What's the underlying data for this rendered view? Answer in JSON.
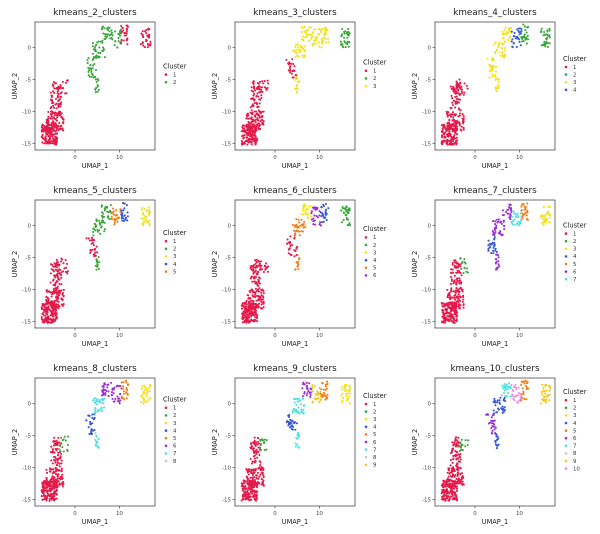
{
  "colors": {
    "1": "#e41a4a",
    "2": "#3aa63a",
    "3": "#f2e21c",
    "4": "#3456d4",
    "5": "#f07f1b",
    "6": "#9b2bd6",
    "7": "#4ee0e0",
    "8": "#c8c8c8",
    "9": "#f2c81c",
    "10": "#f08ae0"
  },
  "chart_data": [
    {
      "type": "scatter",
      "title": "kmeans_2_clusters",
      "xlabel": "UMAP_1",
      "ylabel": "UMAP_2",
      "xticks": [
        0,
        10
      ],
      "yticks": [
        0,
        -5,
        -10,
        -15
      ],
      "xlim": [
        -9,
        18
      ],
      "ylim": [
        -16,
        4
      ],
      "legend_title": "Cluster",
      "legend": [
        "1",
        "2"
      ],
      "region_clusters": {
        "main": 1,
        "stem": 1,
        "connector": 2,
        "mid": 2,
        "branch": 2,
        "top": 2,
        "upper": 1,
        "right": 1
      }
    },
    {
      "type": "scatter",
      "title": "kmeans_3_clusters",
      "xlabel": "UMAP_1",
      "ylabel": "UMAP_2",
      "xticks": [
        0,
        10
      ],
      "yticks": [
        0,
        -5,
        -10,
        -15
      ],
      "xlim": [
        -9,
        18
      ],
      "ylim": [
        -16,
        4
      ],
      "legend_title": "Cluster",
      "legend": [
        "1",
        "2",
        "3"
      ],
      "region_clusters": {
        "main": 1,
        "stem": 1,
        "connector": 1,
        "mid": 3,
        "branch": 3,
        "top": 3,
        "upper": 3,
        "right": 2
      }
    },
    {
      "type": "scatter",
      "title": "kmeans_4_clusters",
      "xlabel": "UMAP_1",
      "ylabel": "UMAP_2",
      "xticks": [
        0,
        10
      ],
      "yticks": [
        0,
        -5,
        -10,
        -15
      ],
      "xlim": [
        -9,
        18
      ],
      "ylim": [
        -16,
        4
      ],
      "legend_title": "Cluster",
      "legend": [
        "1",
        "2",
        "3",
        "4"
      ],
      "region_clusters": {
        "main": 1,
        "stem": 1,
        "connector": 3,
        "mid": 3,
        "branch": 3,
        "top": 4,
        "upper": 2,
        "right": 2
      }
    },
    {
      "type": "scatter",
      "title": "kmeans_5_clusters",
      "xlabel": "UMAP_1",
      "ylabel": "UMAP_2",
      "xticks": [
        0,
        10
      ],
      "yticks": [
        0,
        -5,
        -10,
        -15
      ],
      "xlim": [
        -9,
        18
      ],
      "ylim": [
        -16,
        4
      ],
      "legend_title": "Cluster",
      "legend": [
        "1",
        "2",
        "3",
        "4",
        "5"
      ],
      "region_clusters": {
        "main": 1,
        "stem": 1,
        "connector": 1,
        "mid": 2,
        "branch": 2,
        "top": 5,
        "upper": 4,
        "right": 3
      }
    },
    {
      "type": "scatter",
      "title": "kmeans_6_clusters",
      "xlabel": "UMAP_1",
      "ylabel": "UMAP_2",
      "xticks": [
        0,
        10
      ],
      "yticks": [
        0,
        -5,
        -10,
        -15
      ],
      "xlim": [
        -9,
        18
      ],
      "ylim": [
        -16,
        4
      ],
      "legend_title": "Cluster",
      "legend": [
        "1",
        "2",
        "3",
        "4",
        "5",
        "6"
      ],
      "region_clusters": {
        "main": 1,
        "stem": 1,
        "connector": 1,
        "mid": 5,
        "branch": 3,
        "top": 6,
        "upper": 4,
        "right": 2
      }
    },
    {
      "type": "scatter",
      "title": "kmeans_7_clusters",
      "xlabel": "UMAP_1",
      "ylabel": "UMAP_2",
      "xticks": [
        0,
        10
      ],
      "yticks": [
        0,
        -5,
        -10,
        -15
      ],
      "xlim": [
        -9,
        18
      ],
      "ylim": [
        -16,
        4
      ],
      "legend_title": "Cluster",
      "legend": [
        "1",
        "2",
        "3",
        "4",
        "5",
        "6",
        "7"
      ],
      "region_clusters": {
        "main": 1,
        "stem": 2,
        "connector": 4,
        "mid": 6,
        "branch": 6,
        "top": 7,
        "upper": 5,
        "right": 3
      }
    },
    {
      "type": "scatter",
      "title": "kmeans_8_clusters",
      "xlabel": "UMAP_1",
      "ylabel": "UMAP_2",
      "xticks": [
        0,
        10
      ],
      "yticks": [
        0,
        -5,
        -10,
        -15
      ],
      "xlim": [
        -9,
        18
      ],
      "ylim": [
        -16,
        4
      ],
      "legend_title": "Cluster",
      "legend": [
        "1",
        "2",
        "3",
        "4",
        "5",
        "6",
        "7",
        "8"
      ],
      "region_clusters": {
        "main": 1,
        "stem": 2,
        "connector": 4,
        "mid": 7,
        "branch": 6,
        "top": 6,
        "upper": 5,
        "right": 3
      }
    },
    {
      "type": "scatter",
      "title": "kmeans_9_clusters",
      "xlabel": "UMAP_1",
      "ylabel": "UMAP_2",
      "xticks": [
        0,
        10
      ],
      "yticks": [
        0,
        -5,
        -10,
        -15
      ],
      "xlim": [
        -9,
        18
      ],
      "ylim": [
        -16,
        4
      ],
      "legend_title": "Cluster",
      "legend": [
        "1",
        "2",
        "3",
        "4",
        "5",
        "6",
        "7",
        "8",
        "9"
      ],
      "region_clusters": {
        "main": 1,
        "stem": 2,
        "connector": 4,
        "mid": 7,
        "branch": 6,
        "top": 9,
        "upper": 5,
        "right": 3
      }
    },
    {
      "type": "scatter",
      "title": "kmeans_10_clusters",
      "xlabel": "UMAP_1",
      "ylabel": "UMAP_2",
      "xticks": [
        0,
        10
      ],
      "yticks": [
        0,
        -5,
        -10,
        -15
      ],
      "xlim": [
        -9,
        18
      ],
      "ylim": [
        -16,
        4
      ],
      "legend_title": "Cluster",
      "legend": [
        "1",
        "2",
        "3",
        "4",
        "5",
        "6",
        "7",
        "8",
        "9",
        "10"
      ],
      "region_clusters": {
        "main": 1,
        "stem": 2,
        "connector": 6,
        "mid": 4,
        "branch": 7,
        "top": 10,
        "upper": 5,
        "right": 9
      }
    }
  ]
}
